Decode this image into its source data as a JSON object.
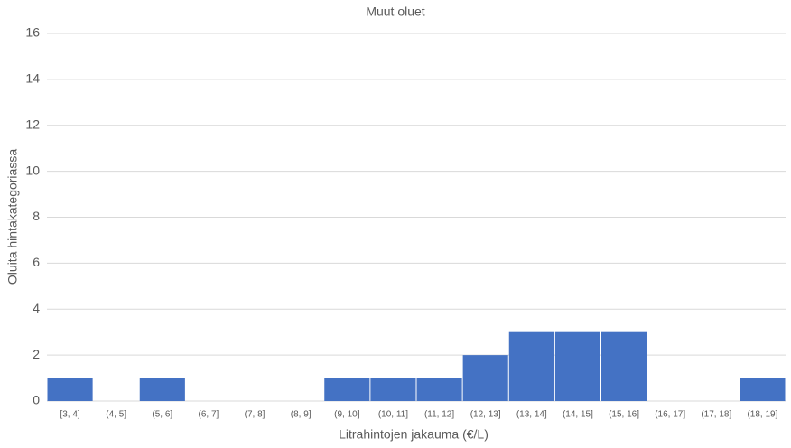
{
  "chart_data": {
    "type": "bar",
    "title": "Muut oluet",
    "x_label": "Litrahintojen jakauma (€/L)",
    "y_label": "Oluita hintakategoriassa",
    "categories": [
      "[3, 4]",
      "(4, 5]",
      "(5, 6]",
      "(6, 7]",
      "(7, 8]",
      "(8, 9]",
      "(9, 10]",
      "(10, 11]",
      "(11, 12]",
      "(12, 13]",
      "(13, 14]",
      "(14, 15]",
      "(15, 16]",
      "(16, 17]",
      "(17, 18]",
      "(18, 19]"
    ],
    "values": [
      1,
      0,
      1,
      0,
      0,
      0,
      1,
      1,
      1,
      2,
      3,
      3,
      3,
      0,
      0,
      1
    ],
    "color": "#4472c4",
    "ylim": [
      0,
      16
    ],
    "yticks": [
      0,
      2,
      4,
      6,
      8,
      10,
      12,
      14,
      16
    ],
    "grid": true
  }
}
